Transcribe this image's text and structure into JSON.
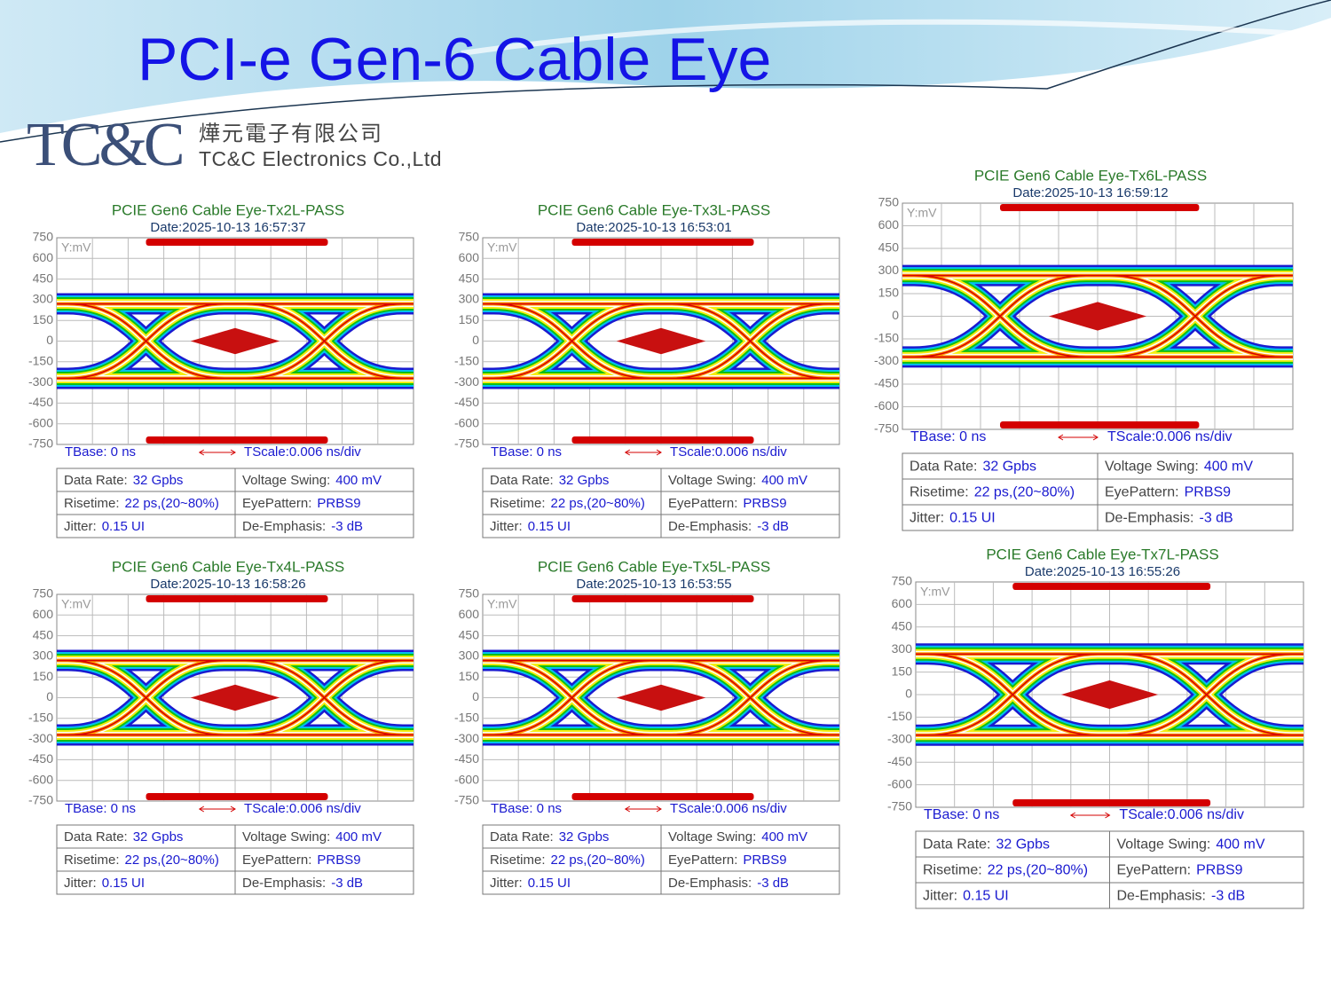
{
  "header": {
    "title": "PCI-e Gen-6  Cable Eye",
    "logo": "TC&C",
    "company_cn": "燁元電子有限公司",
    "company_en": "TC&C Electronics Co.,Ltd"
  },
  "panels": [
    {
      "title": "PCIE Gen6 Cable Eye-Tx2L-PASS",
      "date": "Date:2025-10-13 16:57:37",
      "y_label": "Y:mV",
      "yticks": [
        750,
        600,
        450,
        300,
        150,
        0,
        -150,
        -300,
        -450,
        -600,
        -750
      ],
      "tbase": "TBase: 0 ns",
      "tscale": "TScale:0.006 ns/div",
      "table": [
        [
          {
            "label": "Data Rate:",
            "value": "32 Gpbs"
          },
          {
            "label": "Voltage Swing:",
            "value": "400 mV"
          }
        ],
        [
          {
            "label": "Risetime:",
            "value": "22 ps,(20~80%)"
          },
          {
            "label": "EyePattern:",
            "value": "PRBS9"
          }
        ],
        [
          {
            "label": "Jitter:",
            "value": "0.15 UI"
          },
          {
            "label": "De-Emphasis:",
            "value": "-3 dB"
          }
        ]
      ]
    },
    {
      "title": "PCIE Gen6 Cable Eye-Tx3L-PASS",
      "date": "Date:2025-10-13 16:53:01",
      "y_label": "Y:mV",
      "yticks": [
        750,
        600,
        450,
        300,
        150,
        0,
        -150,
        -300,
        -450,
        -600,
        -750
      ],
      "tbase": "TBase: 0 ns",
      "tscale": "TScale:0.006 ns/div",
      "table": [
        [
          {
            "label": "Data Rate:",
            "value": "32 Gpbs"
          },
          {
            "label": "Voltage Swing:",
            "value": "400 mV"
          }
        ],
        [
          {
            "label": "Risetime:",
            "value": "22 ps,(20~80%)"
          },
          {
            "label": "EyePattern:",
            "value": "PRBS9"
          }
        ],
        [
          {
            "label": "Jitter:",
            "value": "0.15 UI"
          },
          {
            "label": "De-Emphasis:",
            "value": "-3 dB"
          }
        ]
      ]
    },
    {
      "title": "PCIE Gen6 Cable Eye-Tx6L-PASS",
      "date": "Date:2025-10-13 16:59:12",
      "y_label": "Y:mV",
      "yticks": [
        750,
        600,
        450,
        300,
        150,
        0,
        -150,
        -300,
        -450,
        -600,
        -750
      ],
      "tbase": "TBase: 0 ns",
      "tscale": "TScale:0.006 ns/div",
      "table": [
        [
          {
            "label": "Data Rate:",
            "value": "32 Gpbs"
          },
          {
            "label": "Voltage Swing:",
            "value": "400 mV"
          }
        ],
        [
          {
            "label": "Risetime:",
            "value": "22 ps,(20~80%)"
          },
          {
            "label": "EyePattern:",
            "value": "PRBS9"
          }
        ],
        [
          {
            "label": "Jitter:",
            "value": "0.15 UI"
          },
          {
            "label": "De-Emphasis:",
            "value": "-3 dB"
          }
        ]
      ]
    },
    {
      "title": "PCIE Gen6 Cable Eye-Tx4L-PASS",
      "date": "Date:2025-10-13 16:58:26",
      "y_label": "Y:mV",
      "yticks": [
        750,
        600,
        450,
        300,
        150,
        0,
        -150,
        -300,
        -450,
        -600,
        -750
      ],
      "tbase": "TBase: 0 ns",
      "tscale": "TScale:0.006 ns/div",
      "table": [
        [
          {
            "label": "Data Rate:",
            "value": "32 Gpbs"
          },
          {
            "label": "Voltage Swing:",
            "value": "400 mV"
          }
        ],
        [
          {
            "label": "Risetime:",
            "value": "22 ps,(20~80%)"
          },
          {
            "label": "EyePattern:",
            "value": "PRBS9"
          }
        ],
        [
          {
            "label": "Jitter:",
            "value": "0.15 UI"
          },
          {
            "label": "De-Emphasis:",
            "value": "-3 dB"
          }
        ]
      ]
    },
    {
      "title": "PCIE Gen6 Cable Eye-Tx5L-PASS",
      "date": "Date:2025-10-13 16:53:55",
      "y_label": "Y:mV",
      "yticks": [
        750,
        600,
        450,
        300,
        150,
        0,
        -150,
        -300,
        -450,
        -600,
        -750
      ],
      "tbase": "TBase: 0 ns",
      "tscale": "TScale:0.006 ns/div",
      "table": [
        [
          {
            "label": "Data Rate:",
            "value": "32 Gpbs"
          },
          {
            "label": "Voltage Swing:",
            "value": "400 mV"
          }
        ],
        [
          {
            "label": "Risetime:",
            "value": "22 ps,(20~80%)"
          },
          {
            "label": "EyePattern:",
            "value": "PRBS9"
          }
        ],
        [
          {
            "label": "Jitter:",
            "value": "0.15 UI"
          },
          {
            "label": "De-Emphasis:",
            "value": "-3 dB"
          }
        ]
      ]
    },
    {
      "title": "PCIE Gen6 Cable Eye-Tx7L-PASS",
      "date": "Date:2025-10-13 16:55:26",
      "y_label": "Y:mV",
      "yticks": [
        750,
        600,
        450,
        300,
        150,
        0,
        -150,
        -300,
        -450,
        -600,
        -750
      ],
      "tbase": "TBase: 0 ns",
      "tscale": "TScale:0.006 ns/div",
      "table": [
        [
          {
            "label": "Data Rate:",
            "value": "32 Gpbs"
          },
          {
            "label": "Voltage Swing:",
            "value": "400 mV"
          }
        ],
        [
          {
            "label": "Risetime:",
            "value": "22 ps,(20~80%)"
          },
          {
            "label": "EyePattern:",
            "value": "PRBS9"
          }
        ],
        [
          {
            "label": "Jitter:",
            "value": "0.15 UI"
          },
          {
            "label": "De-Emphasis:",
            "value": "-3 dB"
          }
        ]
      ]
    }
  ]
}
